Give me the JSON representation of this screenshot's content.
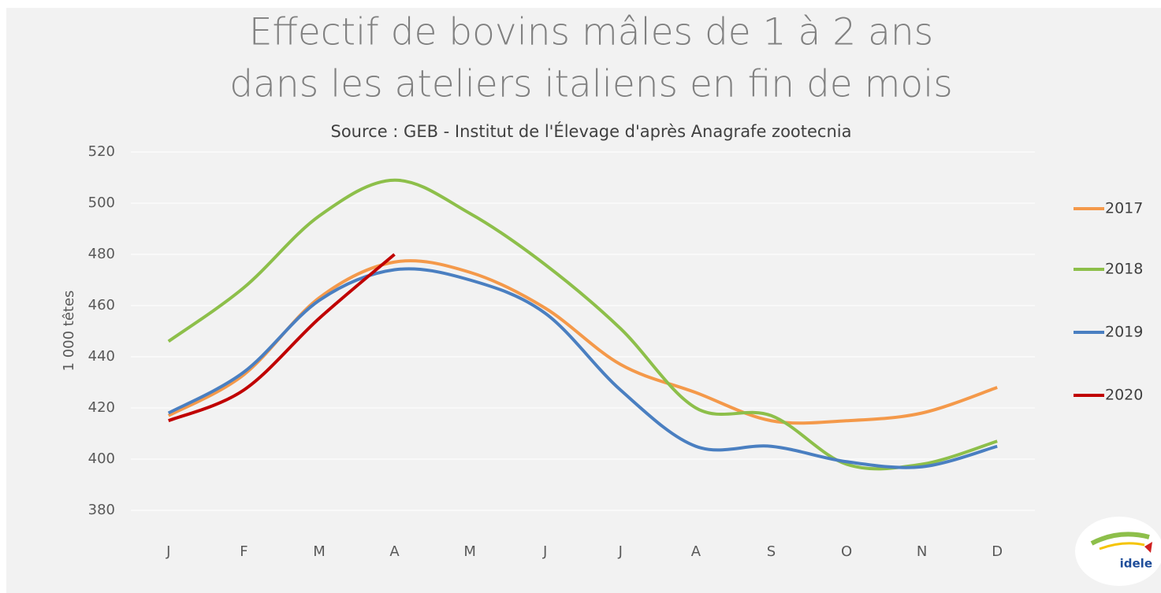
{
  "chart_data": {
    "type": "line",
    "title": [
      "Effectif de bovins mâles de 1 à 2 ans",
      "dans les ateliers italiens en fin de mois"
    ],
    "subtitle": "Source : GEB - Institut de l'Élevage d'après Anagrafe zootecnia",
    "y_label": "1 000 têtes",
    "categories": [
      "J",
      "F",
      "M",
      "A",
      "M",
      "J",
      "J",
      "A",
      "S",
      "O",
      "N",
      "D"
    ],
    "series": [
      {
        "name": "2017",
        "color": "#f4994a",
        "values": [
          417,
          433,
          463,
          477,
          473,
          459,
          437,
          426,
          415,
          415,
          418,
          428
        ]
      },
      {
        "name": "2018",
        "color": "#8dbf4a",
        "values": [
          446,
          467,
          495,
          509,
          496,
          476,
          451,
          420,
          417,
          398,
          398,
          407
        ]
      },
      {
        "name": "2019",
        "color": "#4a7fc1",
        "values": [
          418,
          434,
          462,
          474,
          470,
          457,
          427,
          405,
          405,
          399,
          397,
          405
        ]
      },
      {
        "name": "2020",
        "color": "#c00000",
        "values": [
          415,
          427,
          455,
          480,
          null,
          null,
          null,
          null,
          null,
          null,
          null,
          null
        ]
      }
    ],
    "ylim": [
      380,
      520
    ],
    "yticks": [
      380,
      400,
      420,
      440,
      460,
      480,
      500,
      520
    ],
    "grid": true,
    "legend": "right",
    "logo_text": "idele"
  }
}
